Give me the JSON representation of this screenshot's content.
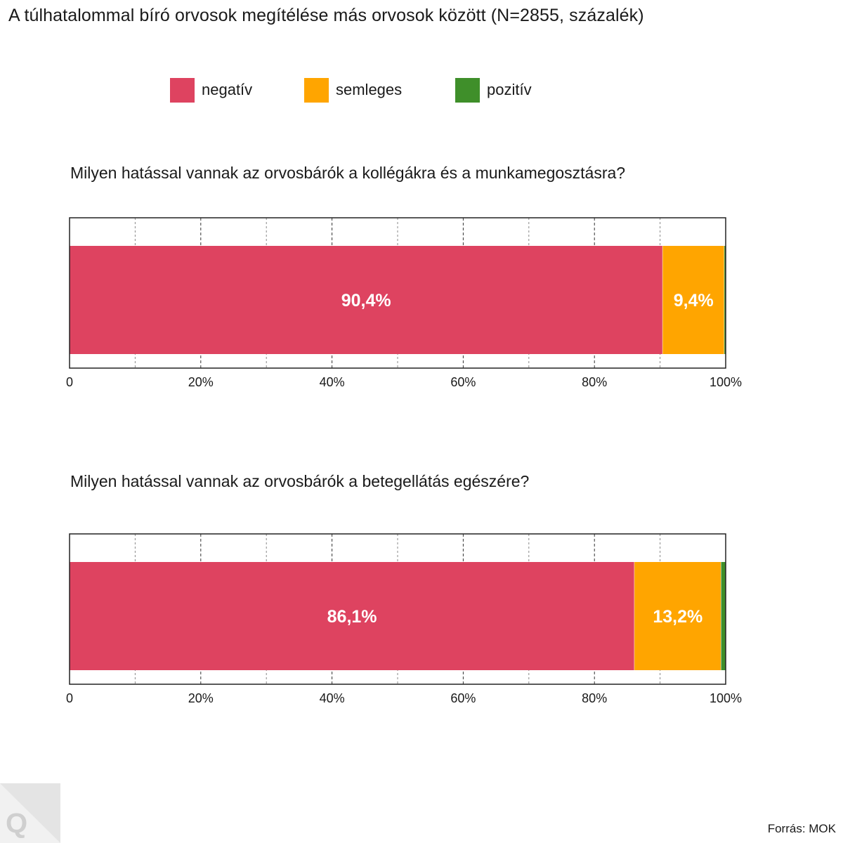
{
  "title": "A túlhatalommal bíró orvosok megítélése más orvosok között (N=2855, százalék)",
  "legend": [
    {
      "label": "negatív",
      "color": "#de4360"
    },
    {
      "label": "semleges",
      "color": "#ffa500"
    },
    {
      "label": "pozitív",
      "color": "#3f8f2a"
    }
  ],
  "chart_data": [
    {
      "type": "bar",
      "orientation": "horizontal",
      "stacked": true,
      "title": "Milyen hatással vannak az orvosbárók a kollégákra és a munkamegosztásra?",
      "xlim": [
        0,
        100
      ],
      "tick_labels": [
        "0",
        "20%",
        "40%",
        "60%",
        "80%",
        "100%"
      ],
      "series": [
        {
          "name": "negatív",
          "value": 90.4,
          "label": "90,4%"
        },
        {
          "name": "semleges",
          "value": 9.4,
          "label": "9,4%"
        },
        {
          "name": "pozitív",
          "value": 0.2,
          "label": ""
        }
      ]
    },
    {
      "type": "bar",
      "orientation": "horizontal",
      "stacked": true,
      "title": "Milyen hatással vannak az orvosbárók a betegellátás egészére?",
      "xlim": [
        0,
        100
      ],
      "tick_labels": [
        "0",
        "20%",
        "40%",
        "60%",
        "80%",
        "100%"
      ],
      "series": [
        {
          "name": "negatív",
          "value": 86.1,
          "label": "86,1%"
        },
        {
          "name": "semleges",
          "value": 13.2,
          "label": "13,2%"
        },
        {
          "name": "pozitív",
          "value": 0.7,
          "label": ""
        }
      ]
    }
  ],
  "source": "Forrás: MOK",
  "logo": "Q"
}
